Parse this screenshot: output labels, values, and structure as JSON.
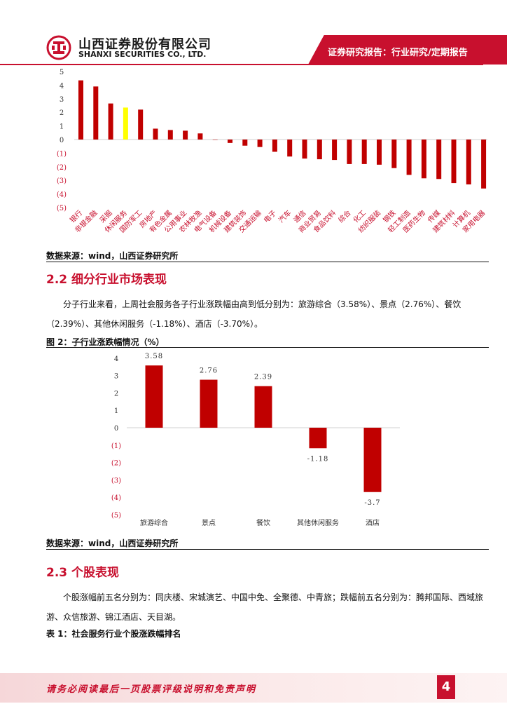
{
  "header": {
    "company_cn": "山西证券股份有限公司",
    "company_en": "SHANXI SECURITIES CO., LTD.",
    "report_type": "证券研究报告：行业研究/定期报告"
  },
  "chart1_source": "数据来源：wind，山西证券研究所",
  "section_2_2": {
    "heading": "2.2 细分行业市场表现",
    "paragraph": "分子行业来看，上周社会服务各子行业涨跌幅由高到低分别为：旅游综合（3.58%）、景点（2.76%）、餐饮（2.39%）、其他休闲服务（-1.18%）、酒店（-3.70%）。",
    "figure_caption": "图 2：子行业涨跌幅情况（%）"
  },
  "chart2_source": "数据来源：wind，山西证券研究所",
  "section_2_3": {
    "heading": "2.3 个股表现",
    "paragraph": "个股涨幅前五名分别为：同庆楼、宋城演艺、中国中免、全聚德、中青旅；跌幅前五名分别为：腾邦国际、西域旅游、众信旅游、锦江酒店、天目湖。",
    "table_caption": "表 1：社会服务行业个股涨跌幅排名"
  },
  "footer": {
    "disclaimer": "请务必阅读最后一页股票评级说明和免责声明",
    "page_number": "4"
  },
  "colors": {
    "brand_red": "#c8102e",
    "bar_red": "#c00000",
    "highlight": "#ffff00"
  },
  "chart_data": [
    {
      "type": "bar",
      "categories": [
        "银行",
        "非银金融",
        "采掘",
        "休闲服务",
        "国防军工",
        "房地产",
        "有色金属",
        "公用事业",
        "农林牧渔",
        "电气设备",
        "机械设备",
        "建筑装饰",
        "交通运输",
        "电子",
        "汽车",
        "通信",
        "商业贸易",
        "食品饮料",
        "综合",
        "化工",
        "纺织服装",
        "钢铁",
        "轻工制造",
        "医药生物",
        "传媒",
        "建筑材料",
        "计算机",
        "家用电器"
      ],
      "values": [
        4.35,
        3.9,
        2.65,
        2.35,
        2.2,
        0.8,
        0.7,
        0.65,
        0.45,
        0.0,
        -0.25,
        -0.45,
        -0.55,
        -0.9,
        -1.25,
        -1.4,
        -1.45,
        -1.5,
        -1.8,
        -1.8,
        -1.85,
        -2.1,
        -2.6,
        -2.85,
        -2.9,
        -3.2,
        -3.3,
        -3.6
      ],
      "highlight_category": "休闲服务",
      "ylim": [
        -5,
        5
      ],
      "ytick_labels": [
        "5",
        "4",
        "3",
        "2",
        "1",
        "0",
        "(1)",
        "(2)",
        "(3)",
        "(4)",
        "(5)"
      ]
    },
    {
      "type": "bar",
      "title": "图 2：子行业涨跌幅情况（%）",
      "categories": [
        "旅游综合",
        "景点",
        "餐饮",
        "其他休闲服务",
        "酒店"
      ],
      "values": [
        3.58,
        2.76,
        2.39,
        -1.18,
        -3.7
      ],
      "data_labels": [
        "3.58",
        "2.76",
        "2.39",
        "-1.18",
        "-3.7"
      ],
      "ylim": [
        -5,
        4
      ],
      "ytick_labels": [
        "4",
        "3",
        "2",
        "1",
        "0",
        "(1)",
        "(2)",
        "(3)",
        "(4)",
        "(5)"
      ]
    }
  ]
}
